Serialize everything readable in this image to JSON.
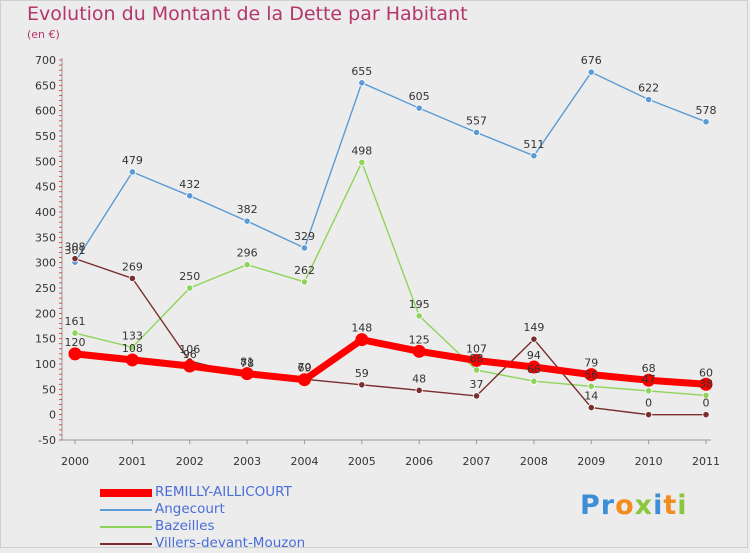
{
  "title": "Evolution du Montant de la Dette par Habitant",
  "subtitle": "(en €)",
  "logo": {
    "text": "Proxiti",
    "colors": [
      "#3c8ed6",
      "#f28c1c",
      "#8cc63f"
    ]
  },
  "chart_data": {
    "type": "line",
    "title": "Evolution du Montant de la Dette par Habitant",
    "subtitle": "(en €)",
    "xlabel": "",
    "ylabel": "",
    "ylim": [
      -50,
      700
    ],
    "yticks": [
      -50,
      0,
      50,
      100,
      150,
      200,
      250,
      300,
      350,
      400,
      450,
      500,
      550,
      600,
      650,
      700
    ],
    "grid": false,
    "legend_position": "bottom-left",
    "x": [
      "2000",
      "2001",
      "2002",
      "2003",
      "2004",
      "2005",
      "2006",
      "2007",
      "2008",
      "2009",
      "2010",
      "2011"
    ],
    "series": [
      {
        "name": "REMILLY-AILLICOURT",
        "color": "#ff0000",
        "values": [
          120,
          108,
          96,
          81,
          69,
          148,
          125,
          107,
          94,
          79,
          68,
          60
        ]
      },
      {
        "name": "Angecourt",
        "color": "#5b9bd5",
        "values": [
          301,
          479,
          432,
          382,
          329,
          655,
          605,
          557,
          511,
          676,
          622,
          578
        ]
      },
      {
        "name": "Bazeilles",
        "color": "#8fd45a",
        "values": [
          161,
          133,
          250,
          296,
          262,
          498,
          195,
          88,
          66,
          56,
          47,
          38
        ]
      },
      {
        "name": "Villers-devant-Mouzon",
        "color": "#7a2e2e",
        "values": [
          308,
          269,
          106,
          78,
          70,
          59,
          48,
          37,
          149,
          14,
          0,
          0
        ]
      }
    ],
    "value_labels": {
      "REMILLY-AILLICOURT": [
        "120",
        "108",
        "96",
        "81",
        "69",
        "148",
        "125",
        "107",
        "94",
        "79",
        "68",
        "60"
      ],
      "Angecourt": [
        "301",
        "479",
        "432",
        "382",
        "329",
        "655",
        "605",
        "557",
        "511",
        "676",
        "622",
        "578"
      ],
      "Bazeilles": [
        "161",
        "133",
        "250",
        "296",
        "262",
        "498",
        "195",
        "88",
        "66",
        "56",
        "47",
        "38"
      ],
      "Villers-devant-Mouzon": [
        "308",
        "269",
        "106",
        "78",
        "70",
        "59",
        "48",
        "37",
        "149",
        "14",
        "0",
        "0"
      ]
    }
  }
}
